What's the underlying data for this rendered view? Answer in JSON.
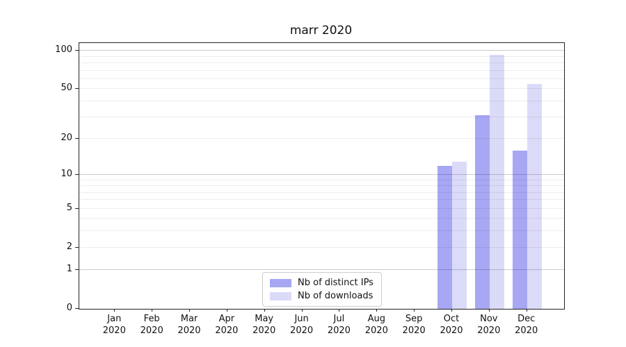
{
  "chart_data": {
    "type": "bar",
    "title": "marr 2020",
    "categories": [
      "Jan 2020",
      "Feb 2020",
      "Mar 2020",
      "Apr 2020",
      "May 2020",
      "Jun 2020",
      "Jul 2020",
      "Aug 2020",
      "Sep 2020",
      "Oct 2020",
      "Nov 2020",
      "Dec 2020"
    ],
    "series": [
      {
        "name": "Nb of distinct IPs",
        "color": "#a7a7f4",
        "values": [
          0,
          0,
          0,
          0,
          0,
          0,
          0,
          0,
          0,
          12,
          31,
          16
        ]
      },
      {
        "name": "Nb of downloads",
        "color": "#dbdbf9",
        "values": [
          0,
          0,
          0,
          0,
          0,
          0,
          0,
          0,
          0,
          13,
          93,
          55
        ]
      }
    ],
    "xlabel": "",
    "ylabel": "",
    "y_scale": "log10(1+y)",
    "y_tick_values": [
      0,
      1,
      2,
      5,
      10,
      20,
      50,
      100
    ],
    "y_major_gridlines": [
      1,
      10,
      100
    ],
    "y_minor_gridlines": [
      2,
      3,
      4,
      5,
      6,
      7,
      8,
      9,
      20,
      30,
      40,
      50,
      60,
      70,
      80,
      90
    ],
    "ylim": [
      0,
      114
    ],
    "grid": "horizontal",
    "legend_position": "lower center",
    "colors": {
      "spine": "#222222",
      "major_grid": "#c9c9c9",
      "minor_grid": "#ededed",
      "background": "#ffffff"
    }
  }
}
